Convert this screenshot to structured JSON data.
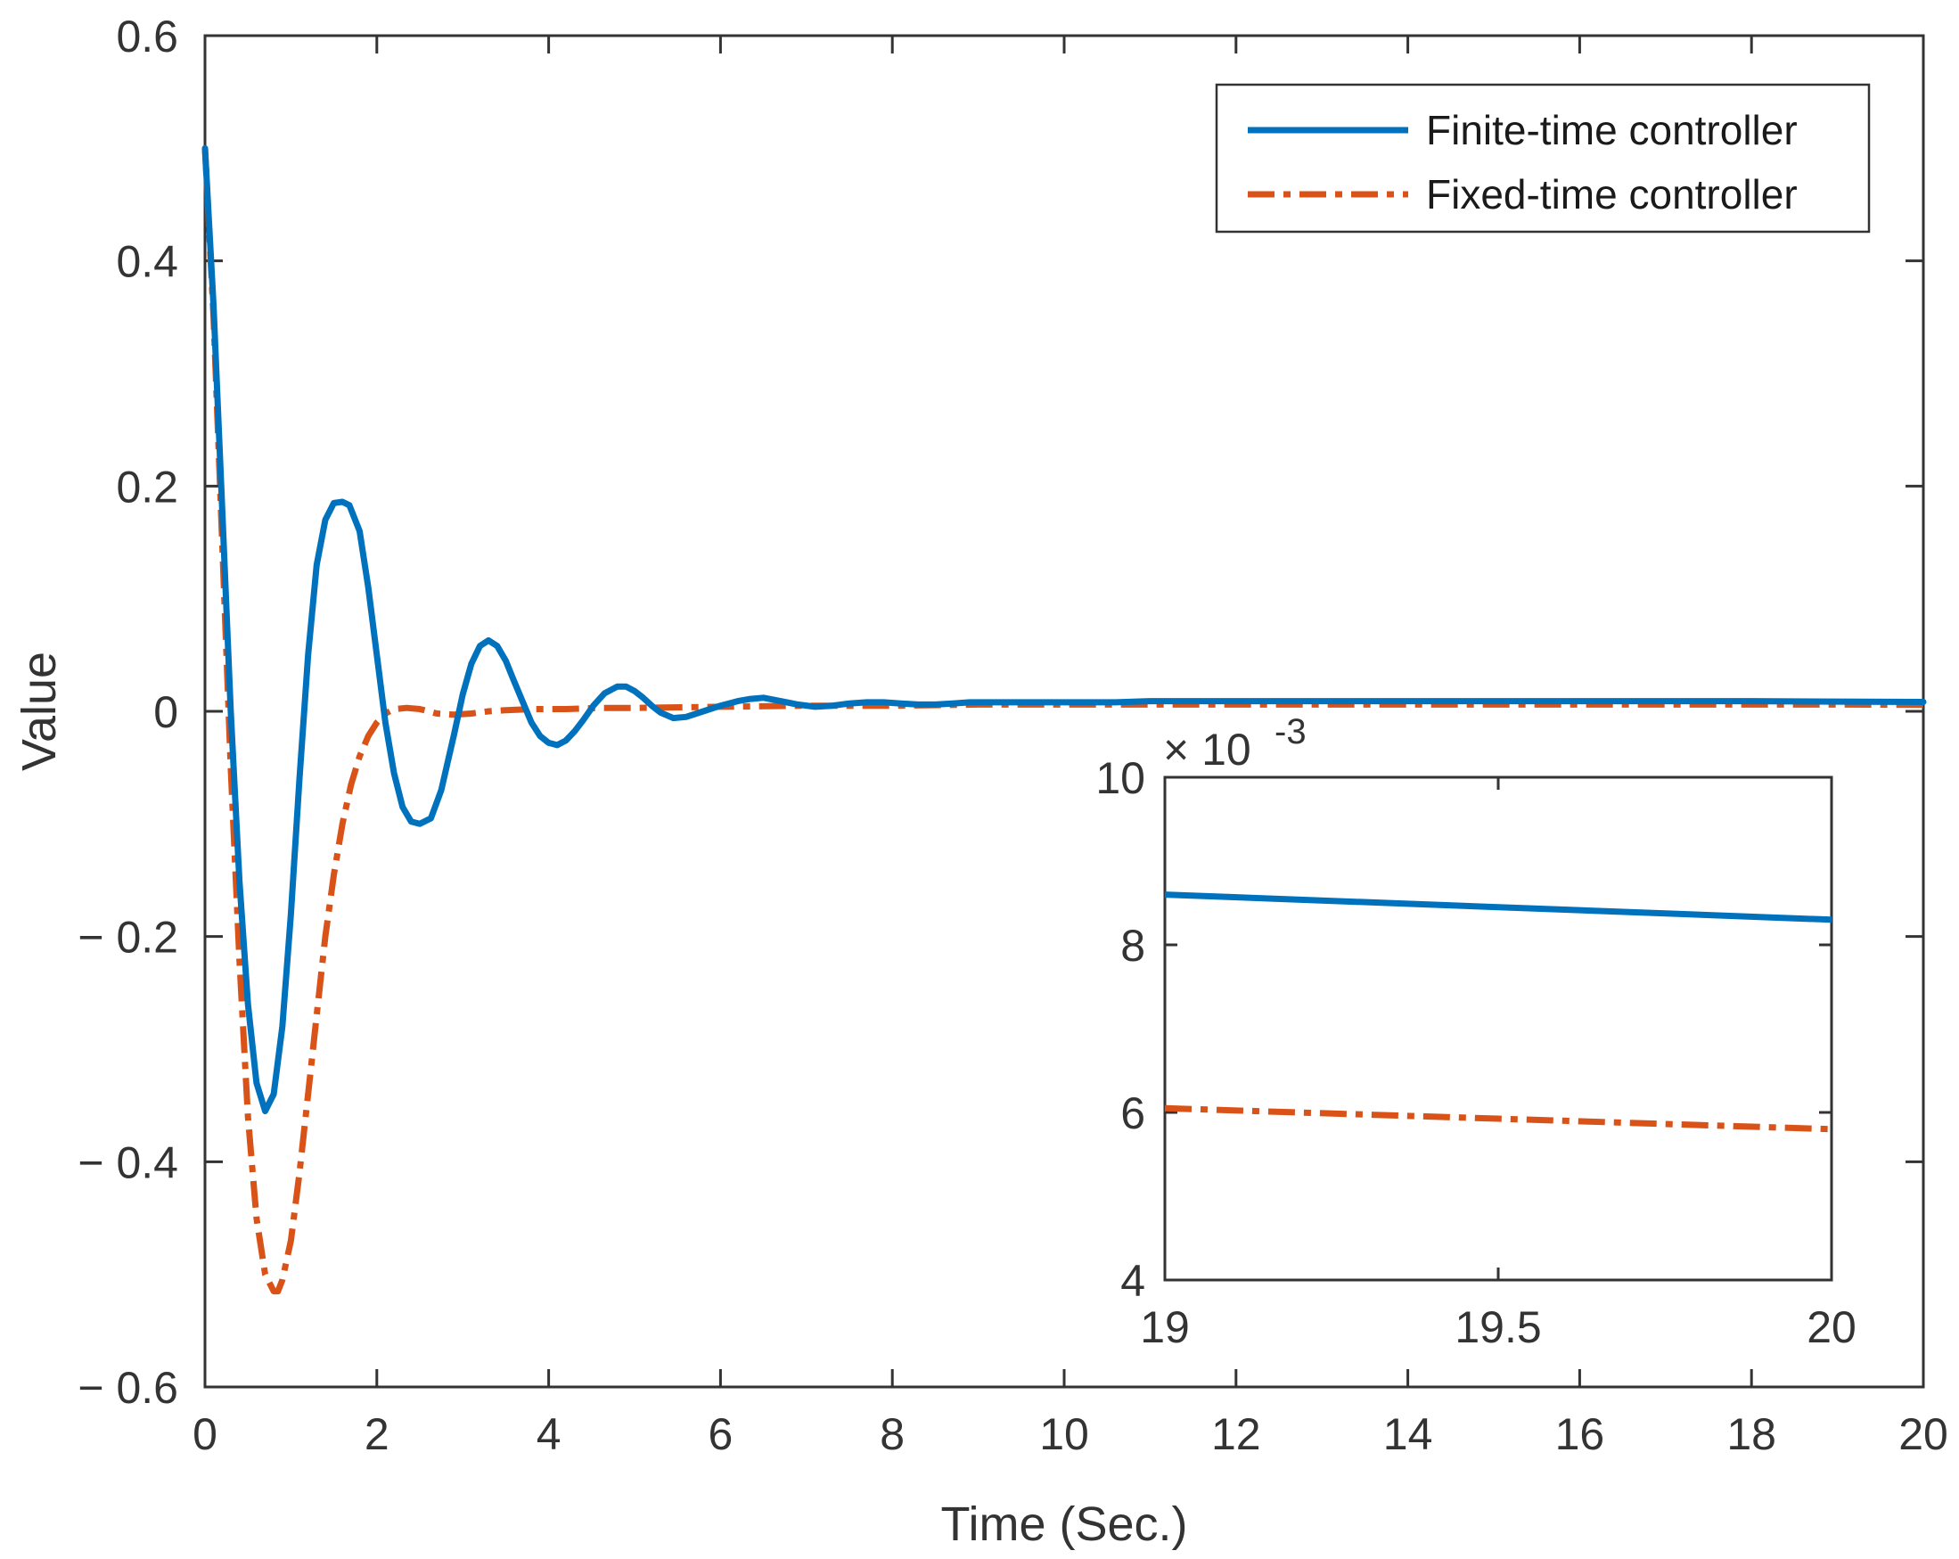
{
  "chart_data": {
    "type": "line",
    "title": "",
    "xlabel": "Time (Sec.)",
    "ylabel": "Value",
    "xlim": [
      0,
      20
    ],
    "ylim": [
      -0.6,
      0.6
    ],
    "xticks": [
      0,
      2,
      4,
      6,
      8,
      10,
      12,
      14,
      16,
      18,
      20
    ],
    "xtick_labels": [
      "0",
      "2",
      "4",
      "6",
      "8",
      "10",
      "12",
      "14",
      "16",
      "18",
      "20"
    ],
    "yticks": [
      -0.6,
      -0.4,
      -0.2,
      0,
      0.2,
      0.4,
      0.6
    ],
    "ytick_labels": [
      "− 0.6",
      "− 0.4",
      "− 0.2",
      "0",
      "0.2",
      "0.4",
      "0.6"
    ],
    "grid": false,
    "legend_position": "top-right",
    "series": [
      {
        "name": "Finite-time controller",
        "color": "#0072BD",
        "style": "solid",
        "x": [
          0,
          0.1,
          0.2,
          0.3,
          0.4,
          0.5,
          0.6,
          0.7,
          0.8,
          0.9,
          1.0,
          1.1,
          1.2,
          1.3,
          1.4,
          1.5,
          1.6,
          1.68,
          1.8,
          1.9,
          2.0,
          2.1,
          2.2,
          2.3,
          2.4,
          2.5,
          2.63,
          2.75,
          2.9,
          3.0,
          3.1,
          3.2,
          3.3,
          3.4,
          3.5,
          3.58,
          3.7,
          3.8,
          3.9,
          4.0,
          4.1,
          4.2,
          4.3,
          4.4,
          4.52,
          4.65,
          4.8,
          4.9,
          5.0,
          5.1,
          5.2,
          5.3,
          5.45,
          5.6,
          5.8,
          6.0,
          6.2,
          6.35,
          6.5,
          6.7,
          6.9,
          7.1,
          7.3,
          7.5,
          7.7,
          7.9,
          8.1,
          8.3,
          8.5,
          8.7,
          8.9,
          9.2,
          9.5,
          9.8,
          10.2,
          10.6,
          11.0,
          11.5,
          12.0,
          13.0,
          14.0,
          15.0,
          16.0,
          17.0,
          18.0,
          19.0,
          20.0
        ],
        "values": [
          0.5,
          0.36,
          0.18,
          0.0,
          -0.15,
          -0.26,
          -0.33,
          -0.355,
          -0.34,
          -0.28,
          -0.18,
          -0.06,
          0.05,
          0.13,
          0.17,
          0.185,
          0.186,
          0.183,
          0.16,
          0.11,
          0.05,
          -0.01,
          -0.055,
          -0.085,
          -0.098,
          -0.1,
          -0.095,
          -0.07,
          -0.02,
          0.015,
          0.042,
          0.058,
          0.063,
          0.058,
          0.045,
          0.03,
          0.008,
          -0.01,
          -0.022,
          -0.028,
          -0.03,
          -0.026,
          -0.018,
          -0.008,
          0.005,
          0.016,
          0.022,
          0.022,
          0.018,
          0.012,
          0.005,
          -0.001,
          -0.006,
          -0.005,
          0.0,
          0.005,
          0.009,
          0.011,
          0.012,
          0.009,
          0.006,
          0.004,
          0.005,
          0.007,
          0.008,
          0.008,
          0.007,
          0.006,
          0.006,
          0.007,
          0.008,
          0.008,
          0.008,
          0.008,
          0.008,
          0.008,
          0.009,
          0.009,
          0.009,
          0.009,
          0.009,
          0.009,
          0.009,
          0.009,
          0.009,
          0.0086,
          0.0083
        ]
      },
      {
        "name": "Fixed-time controller",
        "color": "#D95319",
        "style": "dashdot",
        "x": [
          0,
          0.1,
          0.2,
          0.3,
          0.4,
          0.5,
          0.6,
          0.7,
          0.8,
          0.85,
          0.9,
          1.0,
          1.1,
          1.2,
          1.3,
          1.4,
          1.5,
          1.6,
          1.7,
          1.8,
          1.9,
          2.0,
          2.1,
          2.2,
          2.35,
          2.5,
          2.7,
          2.9,
          3.1,
          3.3,
          3.5,
          3.8,
          4.2,
          4.6,
          5.0,
          6.0,
          7.0,
          8.0,
          9.0,
          10.0,
          12.0,
          14.0,
          16.0,
          18.0,
          19.0,
          20.0
        ],
        "values": [
          0.5,
          0.35,
          0.15,
          -0.05,
          -0.22,
          -0.36,
          -0.45,
          -0.5,
          -0.515,
          -0.515,
          -0.505,
          -0.47,
          -0.41,
          -0.34,
          -0.27,
          -0.2,
          -0.145,
          -0.1,
          -0.065,
          -0.04,
          -0.022,
          -0.01,
          -0.002,
          0.002,
          0.003,
          0.002,
          -0.002,
          -0.003,
          -0.002,
          0.0,
          0.001,
          0.002,
          0.002,
          0.003,
          0.003,
          0.004,
          0.005,
          0.005,
          0.006,
          0.006,
          0.006,
          0.006,
          0.006,
          0.006,
          0.006,
          0.0058
        ]
      }
    ],
    "inset": {
      "xlim": [
        19,
        20
      ],
      "ylim": [
        0.004,
        0.01
      ],
      "xticks": [
        19,
        19.5,
        20
      ],
      "xtick_labels": [
        "19",
        "19.5",
        "20"
      ],
      "yticks": [
        4,
        6,
        8,
        10
      ],
      "ytick_labels": [
        "4",
        "6",
        "8",
        "10"
      ],
      "y_multiplier": "× 10",
      "y_exponent": "-3",
      "series": [
        {
          "name": "Finite-time controller",
          "x": [
            19,
            20
          ],
          "values": [
            0.0086,
            0.0083
          ]
        },
        {
          "name": "Fixed-time controller",
          "x": [
            19,
            20
          ],
          "values": [
            0.00605,
            0.0058
          ]
        }
      ]
    }
  }
}
